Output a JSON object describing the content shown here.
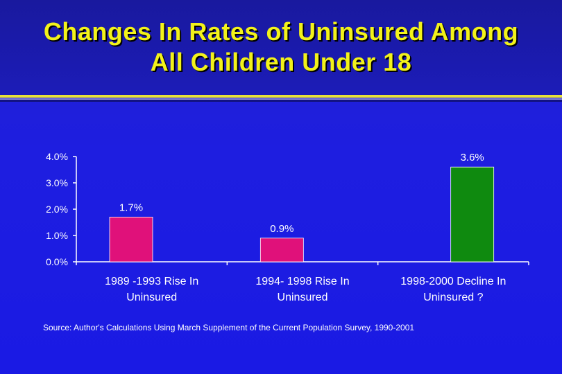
{
  "title_lines": [
    "Changes In Rates of Uninsured Among",
    "All Children Under 18"
  ],
  "colors": {
    "title": "#f2f21a",
    "rise_bar": "#e0117a",
    "decline_bar": "#0f8a0f",
    "axis": "#ffffff"
  },
  "chart_data": {
    "type": "bar",
    "title": "Changes In Rates of Uninsured Among All Children Under 18",
    "xlabel": "",
    "ylabel": "",
    "ylim": [
      0,
      4.0
    ],
    "y_ticks": [
      {
        "value": 0,
        "label": "0.0%"
      },
      {
        "value": 1,
        "label": "1.0%"
      },
      {
        "value": 2,
        "label": "2.0%"
      },
      {
        "value": 3,
        "label": "3.0%"
      },
      {
        "value": 4,
        "label": "4.0%"
      }
    ],
    "categories": [
      {
        "lines": [
          "1989 -1993 Rise In",
          "Uninsured"
        ]
      },
      {
        "lines": [
          "1994- 1998 Rise In",
          "Uninsured"
        ]
      },
      {
        "lines": [
          "1998-2000 Decline In",
          "Uninsured ?"
        ]
      }
    ],
    "values": [
      1.7,
      0.9,
      3.6
    ],
    "value_labels": [
      "1.7%",
      "0.9%",
      "3.6%"
    ],
    "bar_colors": [
      "#e0117a",
      "#e0117a",
      "#0f8a0f"
    ]
  },
  "source": "Source: Author's Calculations Using March Supplement of the Current Population Survey, 1990-2001"
}
